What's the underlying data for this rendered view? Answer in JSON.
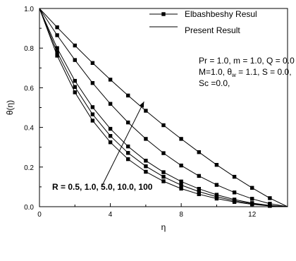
{
  "chart_data": {
    "type": "line",
    "xlabel": "η",
    "ylabel": "θ(η)",
    "xlim": [
      0,
      14
    ],
    "ylim": [
      0,
      1.0
    ],
    "xticks": [
      0,
      4,
      8,
      12
    ],
    "yticks": [
      0.0,
      0.2,
      0.4,
      0.6,
      0.8,
      1.0
    ],
    "grid": false,
    "legend": {
      "placement": "top-right",
      "entries": [
        {
          "label": "Elbashbeshy Resul",
          "style": "line-square"
        },
        {
          "label": "Present Result",
          "style": "line"
        }
      ]
    },
    "parameters_text": {
      "line1": "Pr = 1.0, m = 1.0, Q = 0.0",
      "line2_pre": "M=1.0, θ",
      "line2_sub": "w",
      "line2_post": " = 1.1, S = 0.0,",
      "line3": "Sc =0.0,"
    },
    "annotation": {
      "text": "R = 0.5, 1.0, 5.0, 10.0, 100",
      "arrow_from": [
        3.5,
        0.1
      ],
      "arrow_to": [
        5.9,
        0.53
      ]
    },
    "x": [
      0,
      1,
      2,
      3,
      4,
      5,
      6,
      7,
      8,
      9,
      10,
      11,
      12,
      13,
      14
    ],
    "series": [
      {
        "values": [
          1.0,
          0.905,
          0.813,
          0.725,
          0.641,
          0.561,
          0.484,
          0.411,
          0.342,
          0.275,
          0.211,
          0.151,
          0.095,
          0.043,
          0.0
        ]
      },
      {
        "values": [
          1.0,
          0.865,
          0.74,
          0.624,
          0.519,
          0.425,
          0.342,
          0.27,
          0.208,
          0.155,
          0.11,
          0.072,
          0.04,
          0.015,
          0.0
        ]
      },
      {
        "values": [
          1.0,
          0.8,
          0.635,
          0.502,
          0.393,
          0.304,
          0.232,
          0.174,
          0.127,
          0.09,
          0.06,
          0.036,
          0.018,
          0.006,
          0.0
        ]
      },
      {
        "values": [
          1.0,
          0.78,
          0.604,
          0.466,
          0.357,
          0.271,
          0.204,
          0.151,
          0.109,
          0.076,
          0.05,
          0.03,
          0.015,
          0.005,
          0.0
        ]
      },
      {
        "values": [
          1.0,
          0.762,
          0.577,
          0.434,
          0.325,
          0.24,
          0.176,
          0.128,
          0.091,
          0.063,
          0.041,
          0.024,
          0.012,
          0.004,
          0.0
        ]
      }
    ]
  }
}
